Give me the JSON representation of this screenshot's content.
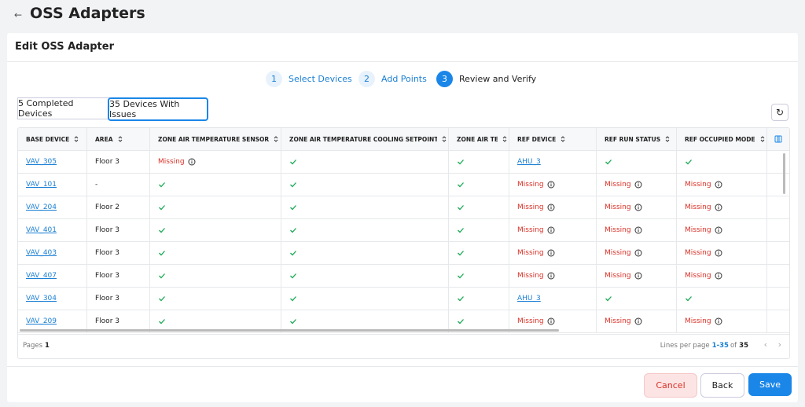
{
  "header": {
    "title": "OSS Adapters"
  },
  "panel": {
    "title": "Edit OSS Adapter"
  },
  "steps": [
    {
      "number": 1,
      "label": "Select Devices"
    },
    {
      "number": 2,
      "label": "Add Points"
    },
    {
      "number": 3,
      "label": "Review and Verify",
      "active": true
    }
  ],
  "tabs": [
    {
      "label": "5 Completed Devices"
    },
    {
      "label": "35 Devices With Issues",
      "active": true
    }
  ],
  "table": {
    "missing_label": "Missing",
    "columns": [
      {
        "label": "BASE DEVICE",
        "link": true
      },
      {
        "label": "AREA"
      },
      {
        "label": "ZONE AIR TEMPERATURE SENSOR"
      },
      {
        "label": "ZONE AIR TEMPERATURE COOLING SETPOINT"
      },
      {
        "label": "ZONE AIR TEMPE"
      },
      {
        "label": "REF DEVICE",
        "link": true
      },
      {
        "label": "REF RUN STATUS"
      },
      {
        "label": "REF OCCUPIED MODE"
      }
    ],
    "rows": [
      [
        "VAV_305",
        "Floor 3",
        null,
        true,
        true,
        "AHU_3",
        true,
        true
      ],
      [
        "VAV_101",
        "-",
        true,
        true,
        true,
        null,
        null,
        null
      ],
      [
        "VAV_204",
        "Floor 2",
        true,
        true,
        true,
        null,
        null,
        null
      ],
      [
        "VAV_401",
        "Floor 3",
        true,
        true,
        true,
        null,
        null,
        null
      ],
      [
        "VAV_403",
        "Floor 3",
        true,
        true,
        true,
        null,
        null,
        null
      ],
      [
        "VAV_407",
        "Floor 3",
        true,
        true,
        true,
        null,
        null,
        null
      ],
      [
        "VAV_304",
        "Floor 3",
        true,
        true,
        true,
        "AHU_3",
        true,
        true
      ],
      [
        "VAV_209",
        "Floor 3",
        true,
        true,
        true,
        null,
        null,
        null
      ]
    ]
  },
  "pagination": {
    "pages_label": "Pages",
    "pages": 1,
    "lines_label": "Lines per page",
    "range": "1-35",
    "of": "of",
    "total": 35
  },
  "buttons": {
    "cancel": "Cancel",
    "back": "Back",
    "save": "Save"
  }
}
